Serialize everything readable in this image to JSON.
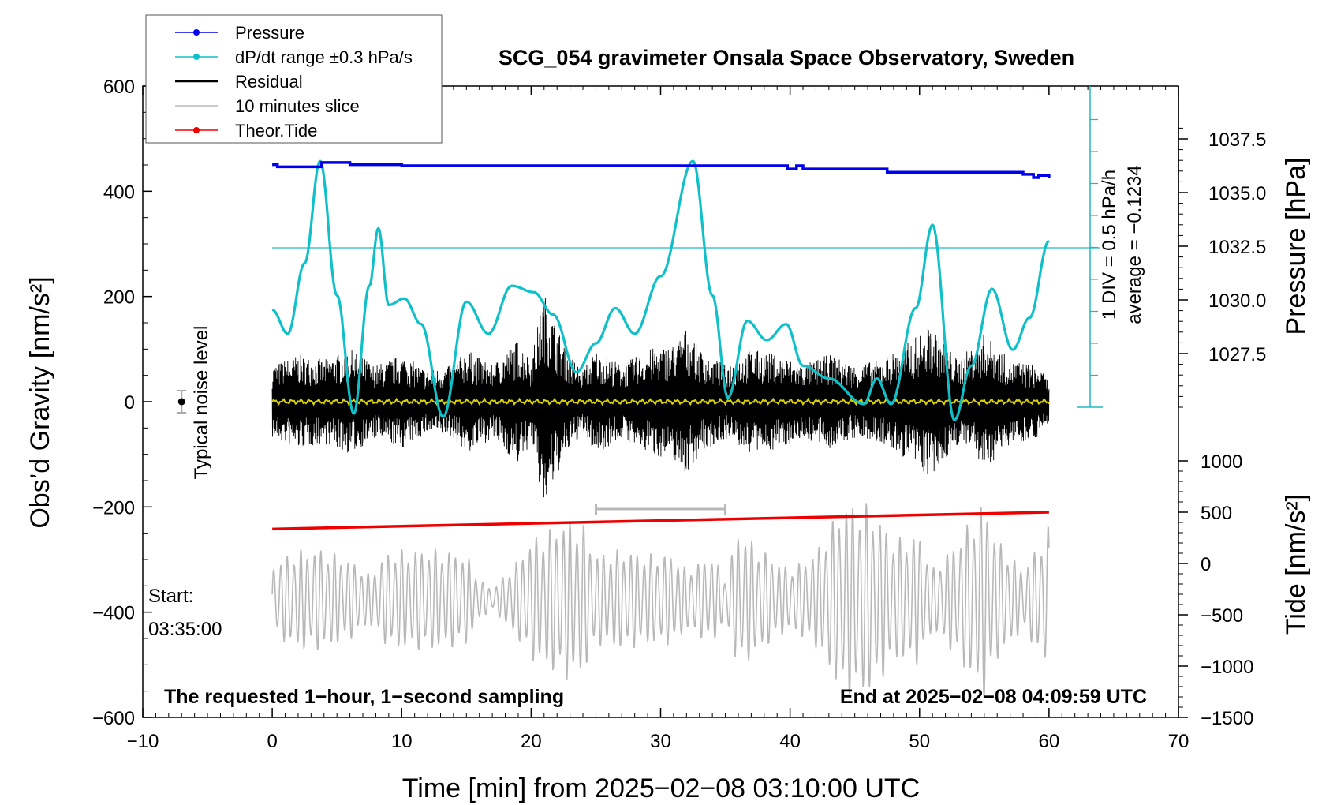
{
  "chart_data": {
    "type": "line",
    "title": "SCG_054 gravimeter Onsala Space Observatory, Sweden",
    "xlabel": "Time [min] from 2025−02−08 03:10:00 UTC",
    "ylabel_left": "Obs’d Gravity [nm/s²]",
    "ylabel_right_top": "Pressure [hPa]",
    "ylabel_right_bottom": "Tide [nm/s²]",
    "xlim": [
      -10,
      70
    ],
    "ylim_left": [
      -600,
      600
    ],
    "x_ticks": [
      "−10",
      "0",
      "10",
      "20",
      "30",
      "40",
      "50",
      "60",
      "70"
    ],
    "y_ticks_left": [
      "600",
      "400",
      "200",
      "0",
      "−200",
      "−400",
      "−600"
    ],
    "pressure_ticks": [
      "1037.5",
      "1035.0",
      "1032.5",
      "1030.0",
      "1027.5"
    ],
    "tide_ticks": [
      "1000",
      "500",
      "0",
      "−500",
      "−1000",
      "−1500"
    ],
    "legend": [
      {
        "label": "Pressure",
        "color": "#0000ee"
      },
      {
        "label": "dP/dt range ±0.3 hPa/s",
        "color": "#10c0c8"
      },
      {
        "label": "Residual",
        "color": "#000000"
      },
      {
        "label": "10 minutes slice",
        "color": "#b8b8b8"
      },
      {
        "label": "Theor.Tide",
        "color": "#ee0000"
      }
    ],
    "series": [
      {
        "name": "Pressure",
        "axis": "pressure_hPa",
        "x": [
          0,
          0.4,
          3.8,
          6,
          10,
          20,
          30,
          39.5,
          39.8,
          40.5,
          41,
          47.5,
          58,
          58.8,
          59.2,
          60
        ],
        "values": [
          1036.3,
          1036.2,
          1036.4,
          1036.3,
          1036.25,
          1036.25,
          1036.25,
          1036.25,
          1036.1,
          1036.25,
          1036.1,
          1035.95,
          1035.85,
          1035.7,
          1035.8,
          1035.7
        ]
      },
      {
        "name": "dP/dt range ±0.3 hPa/s",
        "axis": "div",
        "x": [
          0,
          1.2,
          2.5,
          3.7,
          5,
          6.3,
          7.5,
          8.2,
          9,
          10.2,
          11.5,
          13.2,
          15,
          16.7,
          18.5,
          20.2,
          21.7,
          23.5,
          25,
          26.5,
          28,
          30,
          32.5,
          34,
          35.2,
          36.7,
          38.2,
          39.7,
          41,
          43,
          45.7,
          46.7,
          47.8,
          49.7,
          51,
          52.7,
          54,
          55.6,
          57.2,
          58.5,
          60
        ],
        "values": [
          3.05,
          2.3,
          4.5,
          7.7,
          3.5,
          -0.2,
          3.8,
          5.6,
          3.2,
          3.4,
          2.6,
          -0.3,
          3.3,
          2.3,
          3.8,
          3.6,
          2.9,
          1.1,
          2.0,
          3.1,
          2.3,
          4.1,
          7.7,
          3.5,
          0.3,
          2.7,
          2.1,
          2.6,
          1.3,
          0.9,
          0.1,
          0.9,
          0.1,
          3.1,
          5.7,
          -0.4,
          1.3,
          3.7,
          1.8,
          2.8,
          5.2
        ]
      },
      {
        "name": "Residual",
        "axis": "gravity",
        "x_range": [
          0,
          60
        ],
        "envelope_x": [
          0,
          2,
          4,
          6,
          8,
          10,
          12,
          14,
          15,
          17,
          19,
          20,
          21,
          22,
          23,
          24,
          25,
          27,
          29,
          31,
          32,
          33,
          35,
          37,
          39,
          41,
          43,
          45,
          47,
          49,
          51,
          52,
          53,
          55,
          57,
          59,
          60
        ],
        "envelope_amplitude": [
          70,
          90,
          80,
          100,
          70,
          90,
          60,
          70,
          100,
          70,
          120,
          80,
          210,
          140,
          90,
          60,
          100,
          70,
          100,
          110,
          140,
          100,
          70,
          100,
          90,
          70,
          90,
          70,
          80,
          110,
          150,
          110,
          80,
          130,
          80,
          70,
          40
        ]
      },
      {
        "name": "10 minutes slice",
        "axis": "tide",
        "x_range": [
          0,
          60
        ],
        "envelope_x": [
          0,
          2,
          4,
          6,
          7.5,
          9,
          11,
          13,
          15,
          16,
          17,
          19,
          20,
          22,
          23,
          24,
          25,
          27,
          29,
          31,
          32,
          34,
          35,
          36,
          38,
          40,
          42,
          44,
          46,
          47,
          48,
          50,
          51,
          53,
          55,
          56,
          58,
          59,
          60
        ],
        "envelope_amplitude": [
          350,
          500,
          500,
          400,
          250,
          480,
          500,
          500,
          450,
          200,
          100,
          400,
          600,
          750,
          800,
          750,
          450,
          500,
          450,
          450,
          300,
          450,
          200,
          700,
          480,
          300,
          480,
          950,
          950,
          800,
          600,
          650,
          300,
          600,
          1000,
          600,
          300,
          500,
          750
        ]
      },
      {
        "name": "Theor.Tide",
        "axis": "gravity",
        "x": [
          0,
          60
        ],
        "values": [
          -242,
          -210
        ]
      }
    ],
    "pressure_axis_note": "1 DIV = 0.5 hPa/h",
    "average_note": "average = −0.1234",
    "noise_label": "Typical noise level",
    "start_label_1": "Start:",
    "start_label_2": "03:35:00",
    "slice_bar": [
      25,
      35
    ],
    "footer_left": "The requested 1−hour, 1−second sampling",
    "footer_right": "End at 2025−02−08 04:09:59 UTC"
  }
}
